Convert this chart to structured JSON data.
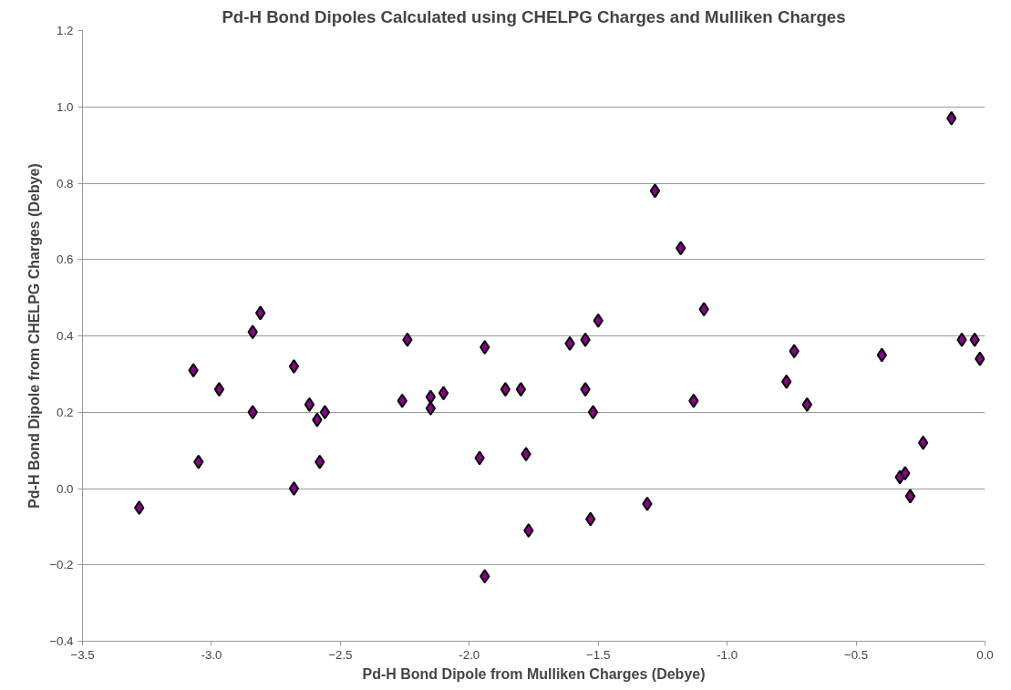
{
  "chart_data": {
    "type": "scatter",
    "title": "Pd-H Bond Dipoles Calculated using CHELPG Charges and Mulliken Charges",
    "xlabel": "Pd-H Bond Dipole from Mulliken Charges (Debye)",
    "ylabel": "Pd-H Bond Dipole from CHELPG Charges (Debye)",
    "x": [
      -3.28,
      -3.07,
      -3.05,
      -2.97,
      -2.84,
      -2.84,
      -2.81,
      -2.68,
      -2.68,
      -2.62,
      -2.59,
      -2.58,
      -2.56,
      -2.26,
      -2.24,
      -2.15,
      -2.15,
      -2.1,
      -1.96,
      -1.94,
      -1.94,
      -1.86,
      -1.8,
      -1.78,
      -1.77,
      -1.61,
      -1.55,
      -1.55,
      -1.53,
      -1.52,
      -1.5,
      -1.31,
      -1.28,
      -1.18,
      -1.13,
      -1.09,
      -0.77,
      -0.74,
      -0.69,
      -0.4,
      -0.33,
      -0.31,
      -0.29,
      -0.24,
      -0.13,
      -0.09,
      -0.04,
      -0.02
    ],
    "values": [
      -0.05,
      0.31,
      0.07,
      0.26,
      0.2,
      0.41,
      0.46,
      0.32,
      0.0,
      0.22,
      0.18,
      0.07,
      0.2,
      0.23,
      0.39,
      0.24,
      0.21,
      0.25,
      0.08,
      0.37,
      -0.23,
      0.26,
      0.26,
      0.09,
      -0.11,
      0.38,
      0.39,
      0.26,
      -0.08,
      0.2,
      0.44,
      -0.04,
      0.78,
      0.63,
      0.23,
      0.47,
      0.28,
      0.36,
      0.22,
      0.35,
      0.03,
      0.04,
      -0.02,
      0.12,
      0.97,
      0.39,
      0.39,
      0.34
    ],
    "color": "#8b008b",
    "marker": "diamond",
    "xlim": [
      -3.5,
      0.0
    ],
    "xticks": [
      -3.5,
      {
        "value": -3.0,
        "label": "-3.0"
      },
      -2.5,
      {
        "value": -2.0,
        "label": "-2.0"
      },
      -1.5,
      {
        "value": -1.0,
        "label": "-1.0"
      },
      -0.5,
      {
        "value": 0.0,
        "label": "0.0"
      }
    ],
    "ylim": [
      -0.4,
      1.2
    ],
    "yticks": [
      -0.4,
      -0.2,
      {
        "value": 0.0,
        "label": "0.0"
      },
      0.2,
      0.4,
      0.6,
      0.8,
      {
        "value": 1.0,
        "label": "1.0"
      },
      1.2
    ],
    "grid": "y"
  }
}
